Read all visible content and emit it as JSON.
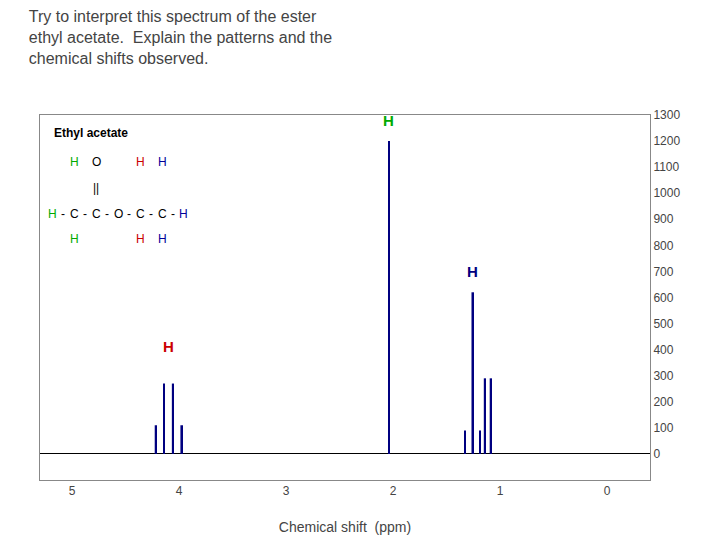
{
  "chart_data": {
    "type": "stem",
    "title": "Try to interpret this spectrum of the ester\nethyl acetate.  Explain the patterns and the\nchemical shifts observed.",
    "xlabel": "Chemical shift  (ppm)",
    "xlim": [
      5.3,
      -0.4
    ],
    "xticks": [
      5,
      4,
      3,
      2,
      1,
      0
    ],
    "ylim": [
      -100,
      1300
    ],
    "yticks": [
      0,
      100,
      200,
      300,
      400,
      500,
      600,
      700,
      800,
      900,
      1000,
      1100,
      1200,
      1300
    ],
    "grid": false,
    "series": [
      {
        "x": [
          2.04
        ],
        "values": [
          1200
        ],
        "color": "#000080"
      },
      {
        "x": [
          4.22,
          4.14,
          4.06,
          3.98
        ],
        "values": [
          110,
          270,
          270,
          110
        ],
        "color": "#000080"
      },
      {
        "x": [
          1.33,
          1.26,
          1.19,
          1.145,
          1.09
        ],
        "values": [
          90,
          620,
          90,
          290,
          290
        ],
        "color": "#000080"
      }
    ],
    "annotations": [
      {
        "text": "H",
        "x": 2.04,
        "y": 1240,
        "color": "#00AA00"
      },
      {
        "text": "H",
        "x": 4.1,
        "y": 370,
        "color": "#CC0000"
      },
      {
        "text": "H",
        "x": 1.26,
        "y": 660,
        "color": "#000080"
      }
    ],
    "structure": {
      "title": "Ethyl acetate",
      "title_color": "#000000",
      "rows": [
        [
          null,
          null,
          {
            "text": "H",
            "color": "#00AA00"
          },
          null,
          {
            "text": "O",
            "color": "#000000"
          },
          null,
          null,
          null,
          {
            "text": "H",
            "color": "#CC0000"
          },
          null,
          {
            "text": "H",
            "color": "#000099"
          },
          null,
          null
        ],
        [
          null,
          null,
          null,
          null,
          {
            "text": "||",
            "color": "#000000"
          },
          null,
          null,
          null,
          null,
          null,
          null,
          null,
          null
        ],
        [
          {
            "text": "H",
            "color": "#00AA00"
          },
          {
            "text": "-",
            "color": "#000000"
          },
          {
            "text": "C",
            "color": "#000000"
          },
          {
            "text": "-",
            "color": "#000000"
          },
          {
            "text": "C",
            "color": "#000000"
          },
          {
            "text": "-",
            "color": "#000000"
          },
          {
            "text": "O",
            "color": "#000000"
          },
          {
            "text": "-",
            "color": "#000000"
          },
          {
            "text": "C",
            "color": "#000000"
          },
          {
            "text": "-",
            "color": "#000000"
          },
          {
            "text": "C",
            "color": "#000000"
          },
          {
            "text": "-",
            "color": "#000000"
          },
          {
            "text": "H",
            "color": "#000099"
          }
        ],
        [
          null,
          null,
          {
            "text": "H",
            "color": "#00AA00"
          },
          null,
          null,
          null,
          null,
          null,
          {
            "text": "H",
            "color": "#CC0000"
          },
          null,
          {
            "text": "H",
            "color": "#000099"
          },
          null,
          null
        ]
      ]
    }
  }
}
